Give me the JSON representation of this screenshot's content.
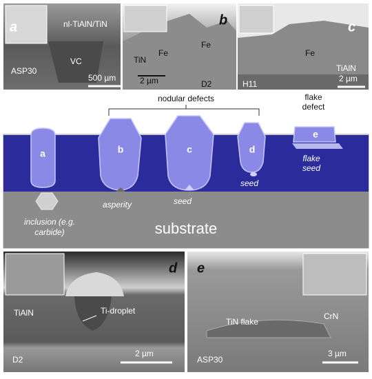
{
  "panels": {
    "a": {
      "label": "a",
      "texts": [
        "nl-TiAlN/TiN",
        "VC",
        "ASP30",
        "500 µm"
      ]
    },
    "b": {
      "label": "b",
      "texts": [
        "TiN",
        "Fe",
        "Fe",
        "2 µm",
        "D2"
      ]
    },
    "c": {
      "label": "c",
      "texts": [
        "Fe",
        "TiAlN",
        "H11",
        "2 µm"
      ]
    },
    "d": {
      "label": "d",
      "texts": [
        "TiAlN",
        "Ti-droplet",
        "D2",
        "2 µm"
      ]
    },
    "e": {
      "label": "e",
      "texts": [
        "TiN flake",
        "CrN",
        "ASP30",
        "3 µm"
      ]
    }
  },
  "schematic": {
    "group_labels": {
      "nodular": "nodular defects",
      "flake": [
        "flake",
        "defect"
      ]
    },
    "defects": [
      "a",
      "b",
      "c",
      "d",
      "e"
    ],
    "annotations": {
      "inclusion": [
        "inclusion (e.g.",
        "carbide)"
      ],
      "asperity": "asperity",
      "seed_c": "seed",
      "seed_d": "seed",
      "flake_seed": [
        "flake",
        "seed"
      ]
    },
    "substrate": "substrate"
  }
}
